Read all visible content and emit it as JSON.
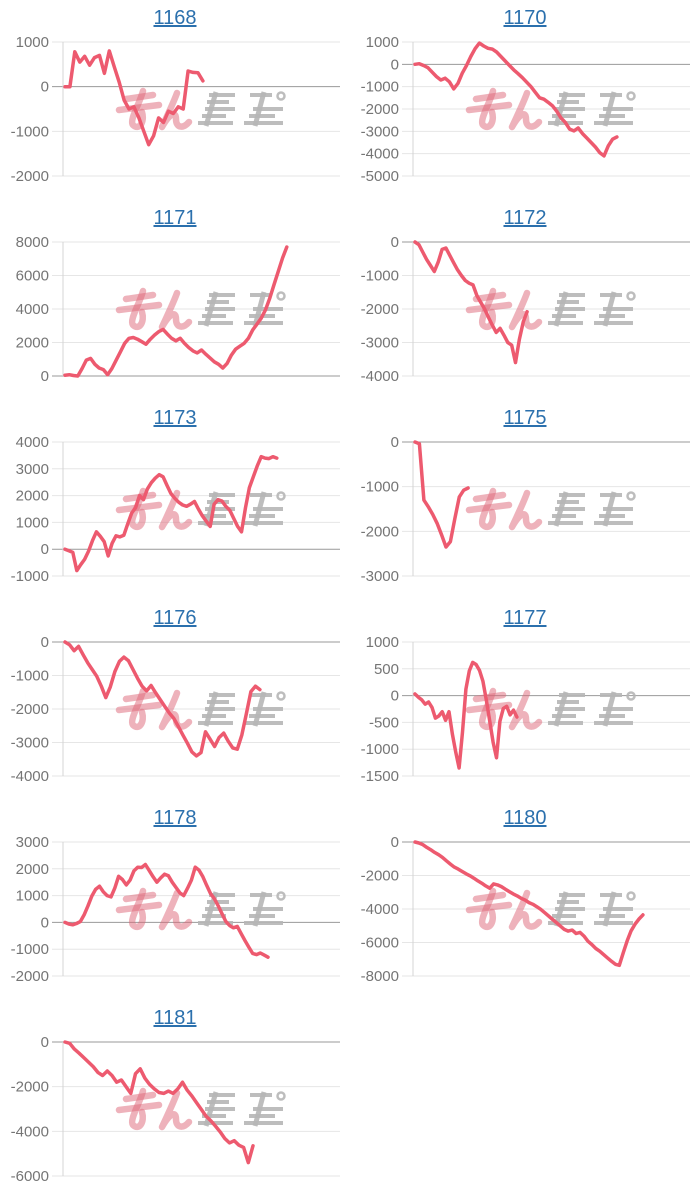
{
  "style": {
    "background": "#ffffff",
    "line_color": "#ed5a6f",
    "grid_color": "#e6e6e6",
    "zero_line_color": "#999999",
    "axis_line_color": "#d4d4d4",
    "label_color": "#757575",
    "link_color": "#2b70ad"
  },
  "watermark": {
    "name": "min-repo-logo",
    "pink_color": "#dd6677",
    "gray_color": "#b6b6b6"
  },
  "chart_data": [
    {
      "type": "line",
      "title": "1168",
      "grid": true,
      "legend": "none",
      "yticks": [
        1000,
        0,
        -1000,
        -2000
      ],
      "ylim": [
        -2000,
        1000
      ],
      "end_frac": 0.505,
      "values": [
        0,
        0,
        780,
        550,
        680,
        480,
        650,
        700,
        300,
        800,
        450,
        100,
        -300,
        -500,
        -450,
        -700,
        -1000,
        -1300,
        -1100,
        -700,
        -800,
        -550,
        -600,
        -450,
        -500,
        350,
        320,
        310,
        130
      ]
    },
    {
      "type": "line",
      "title": "1170",
      "grid": true,
      "legend": "none",
      "yticks": [
        1000,
        0,
        -1000,
        -2000,
        -3000,
        -4000,
        -5000
      ],
      "ylim": [
        -5000,
        1000
      ],
      "end_frac": 0.736,
      "values": [
        0,
        30,
        -50,
        -150,
        -350,
        -550,
        -700,
        -620,
        -780,
        -1100,
        -850,
        -400,
        -50,
        350,
        700,
        950,
        820,
        720,
        680,
        550,
        350,
        150,
        -50,
        -250,
        -420,
        -600,
        -800,
        -1000,
        -1250,
        -1500,
        -1560,
        -1700,
        -1850,
        -2100,
        -2400,
        -2600,
        -2900,
        -2980,
        -2850,
        -3100,
        -3300,
        -3500,
        -3700,
        -3950,
        -4100,
        -3650,
        -3350,
        -3250
      ]
    },
    {
      "type": "line",
      "title": "1171",
      "grid": true,
      "legend": "none",
      "yticks": [
        8000,
        6000,
        4000,
        2000,
        0
      ],
      "ylim": [
        0,
        8000
      ],
      "end_frac": 0.808,
      "values": [
        50,
        80,
        30,
        0,
        450,
        950,
        1050,
        700,
        480,
        380,
        80,
        450,
        950,
        1450,
        1950,
        2250,
        2300,
        2200,
        2050,
        1900,
        2200,
        2450,
        2650,
        2780,
        2500,
        2250,
        2100,
        2250,
        1950,
        1700,
        1500,
        1380,
        1550,
        1300,
        1080,
        850,
        700,
        480,
        750,
        1250,
        1600,
        1780,
        1950,
        2250,
        2750,
        3100,
        3450,
        3950,
        4650,
        5450,
        6250,
        7050,
        7700
      ]
    },
    {
      "type": "line",
      "title": "1172",
      "grid": true,
      "legend": "none",
      "yticks": [
        0,
        -1000,
        -2000,
        -3000,
        -4000
      ],
      "ylim": [
        -4000,
        0
      ],
      "end_frac": 0.412,
      "values": [
        0,
        -80,
        -300,
        -520,
        -700,
        -880,
        -600,
        -220,
        -180,
        -400,
        -620,
        -830,
        -1000,
        -1150,
        -1230,
        -1280,
        -1600,
        -1800,
        -2000,
        -2250,
        -2480,
        -2700,
        -2580,
        -2780,
        -3000,
        -3080,
        -3600,
        -2900,
        -2380,
        -2080
      ]
    },
    {
      "type": "line",
      "title": "1173",
      "grid": true,
      "legend": "none",
      "yticks": [
        4000,
        3000,
        2000,
        1000,
        0,
        -1000
      ],
      "ylim": [
        -1000,
        4000
      ],
      "end_frac": 0.772,
      "values": [
        0,
        -60,
        -120,
        -800,
        -580,
        -380,
        -80,
        320,
        650,
        480,
        280,
        -250,
        220,
        500,
        460,
        520,
        950,
        1350,
        1550,
        2000,
        1850,
        2250,
        2480,
        2650,
        2780,
        2700,
        2380,
        2080,
        1900,
        1750,
        1650,
        1600,
        1680,
        1780,
        1500,
        1250,
        1050,
        850,
        1680,
        1850,
        1800,
        1600,
        1450,
        1150,
        850,
        650,
        1550,
        2300,
        2700,
        3100,
        3450,
        3400,
        3380,
        3450,
        3400
      ]
    },
    {
      "type": "line",
      "title": "1175",
      "grid": true,
      "legend": "none",
      "yticks": [
        0,
        -1000,
        -2000,
        -3000
      ],
      "ylim": [
        -3000,
        0
      ],
      "end_frac": 0.199,
      "values": [
        0,
        -40,
        -1300,
        -1450,
        -1620,
        -1820,
        -2080,
        -2350,
        -2230,
        -1720,
        -1230,
        -1080,
        -1030
      ]
    },
    {
      "type": "line",
      "title": "1176",
      "grid": true,
      "legend": "none",
      "yticks": [
        0,
        -1000,
        -2000,
        -3000,
        -4000
      ],
      "ylim": [
        -4000,
        0
      ],
      "end_frac": 0.711,
      "values": [
        0,
        -80,
        -260,
        -130,
        -380,
        -620,
        -820,
        -1020,
        -1320,
        -1660,
        -1340,
        -880,
        -580,
        -450,
        -560,
        -820,
        -1080,
        -1320,
        -1460,
        -1300,
        -1520,
        -1720,
        -1920,
        -2120,
        -2280,
        -2520,
        -2780,
        -3020,
        -3280,
        -3400,
        -3300,
        -2680,
        -2900,
        -3120,
        -2850,
        -2720,
        -2960,
        -3160,
        -3200,
        -2780,
        -2150,
        -1480,
        -1320,
        -1420
      ]
    },
    {
      "type": "line",
      "title": "1177",
      "grid": true,
      "legend": "none",
      "yticks": [
        1000,
        500,
        0,
        -500,
        -1000,
        -1500
      ],
      "ylim": [
        -1500,
        1000
      ],
      "end_frac": 0.375,
      "values": [
        30,
        -30,
        -80,
        -160,
        -120,
        -220,
        -420,
        -380,
        -300,
        -460,
        -300,
        -720,
        -1060,
        -1350,
        -680,
        120,
        460,
        620,
        580,
        470,
        270,
        -80,
        -470,
        -870,
        -1160,
        -480,
        -240,
        -200,
        -360,
        -270,
        -400
      ]
    },
    {
      "type": "line",
      "title": "1178",
      "grid": true,
      "legend": "none",
      "yticks": [
        3000,
        2000,
        1000,
        0,
        -1000,
        -2000
      ],
      "ylim": [
        -2000,
        3000
      ],
      "end_frac": 0.74,
      "values": [
        0,
        -60,
        -90,
        -40,
        30,
        280,
        620,
        980,
        1230,
        1350,
        1140,
        1000,
        950,
        1280,
        1720,
        1600,
        1400,
        1580,
        1920,
        2060,
        2050,
        2160,
        1930,
        1700,
        1500,
        1660,
        1800,
        1740,
        1500,
        1300,
        1100,
        1000,
        1280,
        1580,
        2060,
        1950,
        1700,
        1380,
        1080,
        880,
        620,
        320,
        30,
        -120,
        -200,
        -150,
        -420,
        -680,
        -920,
        -1160,
        -1200,
        -1140,
        -1220,
        -1300
      ]
    },
    {
      "type": "line",
      "title": "1180",
      "grid": true,
      "legend": "none",
      "yticks": [
        0,
        -2000,
        -4000,
        -6000,
        -8000
      ],
      "ylim": [
        -8000,
        0
      ],
      "end_frac": 0.83,
      "values": [
        0,
        -60,
        -160,
        -320,
        -460,
        -620,
        -760,
        -920,
        -1120,
        -1320,
        -1500,
        -1620,
        -1760,
        -1900,
        -2020,
        -2160,
        -2320,
        -2460,
        -2620,
        -2760,
        -2500,
        -2560,
        -2660,
        -2820,
        -2960,
        -3100,
        -3220,
        -3360,
        -3460,
        -3620,
        -3720,
        -3860,
        -4020,
        -4220,
        -4420,
        -4620,
        -4820,
        -5020,
        -5220,
        -5320,
        -5260,
        -5460,
        -5400,
        -5620,
        -5920,
        -6120,
        -6360,
        -6520,
        -6720,
        -6920,
        -7120,
        -7300,
        -7360,
        -6600,
        -5900,
        -5300,
        -4900,
        -4600,
        -4350
      ]
    },
    {
      "type": "line",
      "title": "1181",
      "grid": true,
      "legend": "none",
      "yticks": [
        0,
        -2000,
        -4000,
        -6000
      ],
      "ylim": [
        -6000,
        0
      ],
      "end_frac": 0.686,
      "values": [
        0,
        -60,
        -320,
        -500,
        -700,
        -900,
        -1100,
        -1360,
        -1500,
        -1300,
        -1500,
        -1800,
        -1700,
        -2000,
        -2300,
        -1420,
        -1200,
        -1620,
        -1900,
        -2100,
        -2260,
        -2300,
        -2200,
        -2300,
        -2100,
        -1800,
        -2160,
        -2420,
        -2720,
        -3020,
        -3320,
        -3520,
        -3760,
        -4020,
        -4320,
        -4520,
        -4420,
        -4620,
        -4720,
        -5400,
        -4650
      ]
    }
  ]
}
